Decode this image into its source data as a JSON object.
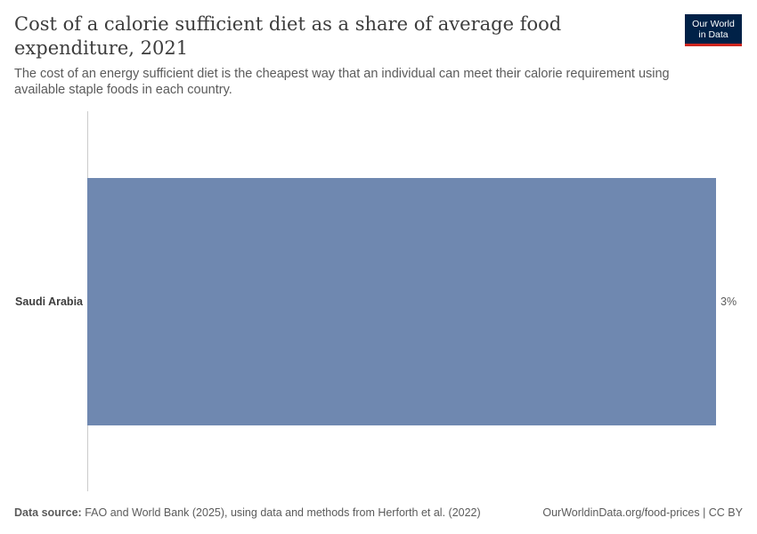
{
  "header": {
    "title": "Cost of a calorie sufficient diet as a share of average food expenditure, 2021",
    "subtitle": "The cost of an energy sufficient diet is the cheapest way that an individual can meet their calorie requirement using available staple foods in each country."
  },
  "logo": {
    "line1": "Our World",
    "line2": "in Data"
  },
  "footer": {
    "source_label": "Data source:",
    "source_text": "FAO and World Bank (2025), using data and methods from Herforth et al. (2022)",
    "link": "OurWorldinData.org/food-prices | CC BY"
  },
  "colors": {
    "bar": "#6f88b0",
    "axis": "#cccccc",
    "text": "#5b5b5b"
  },
  "chart_data": {
    "type": "bar",
    "orientation": "horizontal",
    "categories": [
      "Saudi Arabia"
    ],
    "values": [
      3
    ],
    "value_labels": [
      "3%"
    ],
    "unit": "%",
    "xlim": [
      0,
      3
    ],
    "grid": false
  }
}
